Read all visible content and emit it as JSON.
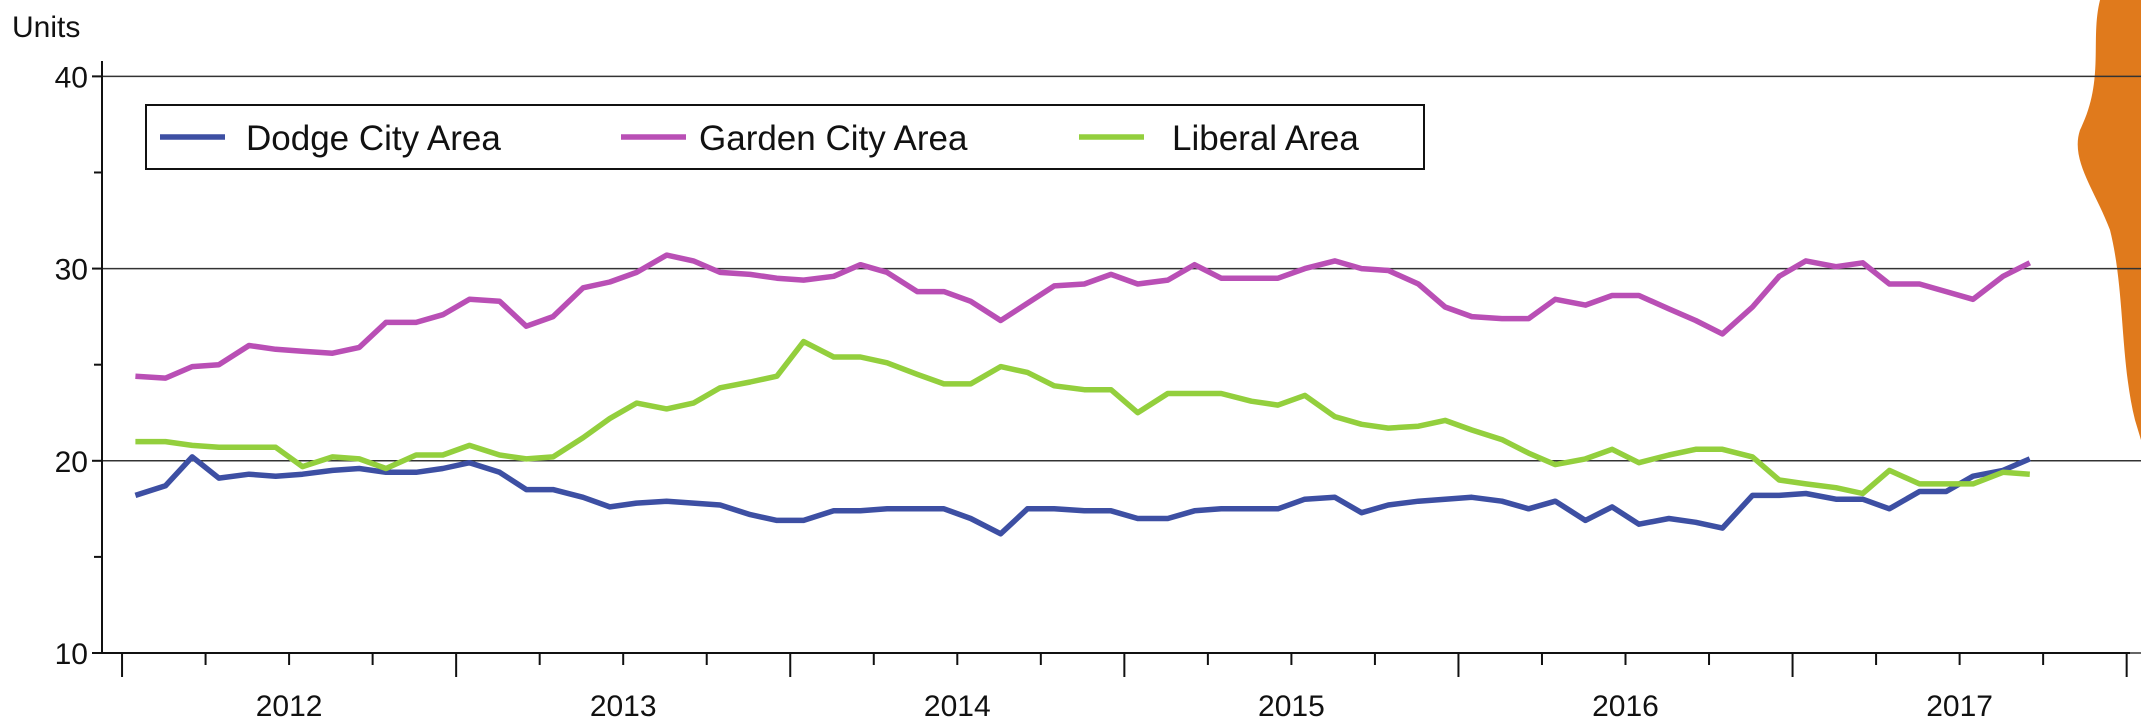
{
  "chart_data": {
    "type": "line",
    "ylabel": "Units",
    "x": [
      2012.04,
      2012.13,
      2012.21,
      2012.29,
      2012.38,
      2012.46,
      2012.54,
      2012.63,
      2012.71,
      2012.79,
      2012.88,
      2012.96,
      2013.04,
      2013.13,
      2013.21,
      2013.29,
      2013.38,
      2013.46,
      2013.54,
      2013.63,
      2013.71,
      2013.79,
      2013.88,
      2013.96,
      2014.04,
      2014.13,
      2014.21,
      2014.29,
      2014.38,
      2014.46,
      2014.54,
      2014.63,
      2014.71,
      2014.79,
      2014.88,
      2014.96,
      2015.04,
      2015.13,
      2015.21,
      2015.29,
      2015.38,
      2015.46,
      2015.54,
      2015.63,
      2015.71,
      2015.79,
      2015.88,
      2015.96,
      2016.04,
      2016.13,
      2016.21,
      2016.29,
      2016.38,
      2016.46,
      2016.54,
      2016.63,
      2016.71,
      2016.79,
      2016.88,
      2016.96,
      2017.04,
      2017.13,
      2017.21,
      2017.29,
      2017.38,
      2017.46,
      2017.54,
      2017.63,
      2017.71
    ],
    "series": [
      {
        "name": "Dodge City Area",
        "color": "#3d4fa3",
        "values": [
          18.2,
          18.7,
          20.2,
          19.1,
          19.3,
          19.2,
          19.3,
          19.5,
          19.6,
          19.4,
          19.4,
          19.6,
          19.9,
          19.4,
          18.5,
          18.5,
          18.1,
          17.6,
          17.8,
          17.9,
          17.8,
          17.7,
          17.2,
          16.9,
          16.9,
          17.4,
          17.4,
          17.5,
          17.5,
          17.5,
          17.0,
          16.2,
          17.5,
          17.5,
          17.4,
          17.4,
          17.0,
          17.0,
          17.4,
          17.5,
          17.5,
          17.5,
          18.0,
          18.1,
          17.3,
          17.7,
          17.9,
          18.0,
          18.1,
          17.9,
          17.5,
          17.9,
          16.9,
          17.6,
          16.7,
          17.0,
          16.8,
          16.5,
          18.2,
          18.2,
          18.3,
          18.0,
          18.0,
          17.5,
          18.4,
          18.4,
          19.2,
          19.5,
          20.1
        ]
      },
      {
        "name": "Garden City Area",
        "color": "#b94fb5",
        "values": [
          24.4,
          24.3,
          24.9,
          25.0,
          26.0,
          25.8,
          25.7,
          25.6,
          25.9,
          27.2,
          27.2,
          27.6,
          28.4,
          28.3,
          27.0,
          27.5,
          29.0,
          29.3,
          29.8,
          30.7,
          30.4,
          29.8,
          29.7,
          29.5,
          29.4,
          29.6,
          30.2,
          29.8,
          28.8,
          28.8,
          28.3,
          27.3,
          28.2,
          29.1,
          29.2,
          29.7,
          29.2,
          29.4,
          30.2,
          29.5,
          29.5,
          29.5,
          30.0,
          30.4,
          30.0,
          29.9,
          29.2,
          28.0,
          27.5,
          27.4,
          27.4,
          28.4,
          28.1,
          28.6,
          28.6,
          27.9,
          27.3,
          26.6,
          28.0,
          29.6,
          30.4,
          30.1,
          30.3,
          29.2,
          29.2,
          28.8,
          28.4,
          29.6,
          30.3
        ]
      },
      {
        "name": "Liberal Area",
        "color": "#93cf3d",
        "values": [
          21.0,
          21.0,
          20.8,
          20.7,
          20.7,
          20.7,
          19.7,
          20.2,
          20.1,
          19.6,
          20.3,
          20.3,
          20.8,
          20.3,
          20.1,
          20.2,
          21.2,
          22.2,
          23.0,
          22.7,
          23.0,
          23.8,
          24.1,
          24.4,
          26.2,
          25.4,
          25.4,
          25.1,
          24.5,
          24.0,
          24.0,
          24.9,
          24.6,
          23.9,
          23.7,
          23.7,
          22.5,
          23.5,
          23.5,
          23.5,
          23.1,
          22.9,
          23.4,
          22.3,
          21.9,
          21.7,
          21.8,
          22.1,
          21.6,
          21.1,
          20.4,
          19.8,
          20.1,
          20.6,
          19.9,
          20.3,
          20.6,
          20.6,
          20.2,
          19.0,
          18.8,
          18.6,
          18.3,
          19.5,
          18.8,
          18.8,
          18.8,
          19.4,
          19.3
        ]
      }
    ],
    "xlim": [
      2011.94,
      2018.01
    ],
    "xticks": [
      {
        "value": 2012.5,
        "label": "2012"
      },
      {
        "value": 2013.5,
        "label": "2013"
      },
      {
        "value": 2014.5,
        "label": "2014"
      },
      {
        "value": 2015.5,
        "label": "2015"
      },
      {
        "value": 2016.5,
        "label": "2016"
      },
      {
        "value": 2017.5,
        "label": "2017"
      }
    ],
    "x_major_ticks": [
      2012,
      2013,
      2014,
      2015,
      2016,
      2017,
      2018
    ],
    "x_minor_ticks": [
      2012.25,
      2012.5,
      2012.75,
      2013.25,
      2013.5,
      2013.75,
      2014.25,
      2014.5,
      2014.75,
      2015.25,
      2015.5,
      2015.75,
      2016.25,
      2016.5,
      2016.75,
      2017.25,
      2017.5,
      2017.75
    ],
    "ylim": [
      10,
      40.8
    ],
    "yticks": [
      10,
      20,
      30,
      40
    ],
    "y_minor_ticks": [
      15,
      25,
      35
    ],
    "grid": true,
    "legend": "top"
  }
}
